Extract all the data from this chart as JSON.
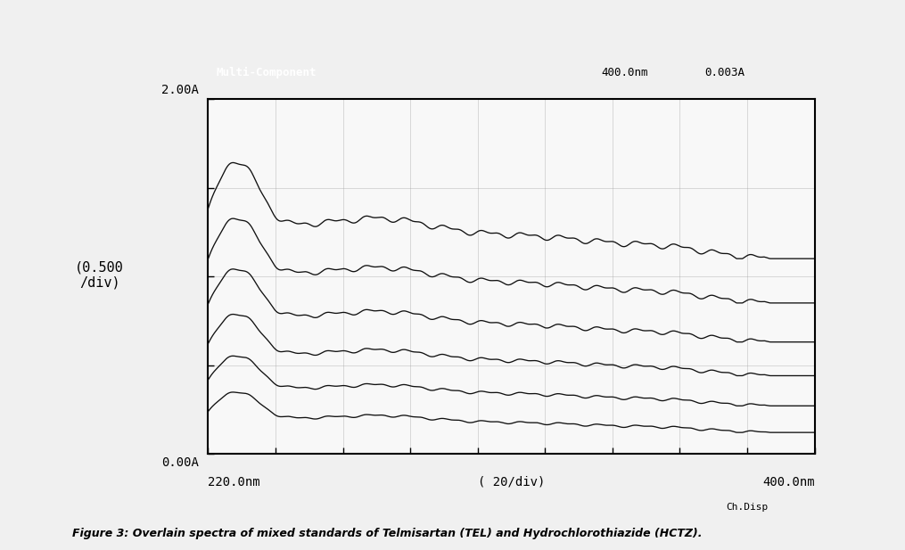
{
  "title": "Multi-Component",
  "header_right1": "400.0nm",
  "header_right2": "0.003A",
  "ylabel_text": "(0.500\n/div)",
  "xlabel_text": "( 20/div)",
  "xmin": 220.0,
  "xmax": 400.0,
  "ymin": 0.0,
  "ymax": 2.0,
  "x_label_left": "220.0nm",
  "x_label_right": "400.0nm",
  "y_label_top": "2.00A",
  "y_label_bottom": "0.00A",
  "caption": "Figure 3: Overlain spectra of mixed standards of Telmisartan (TEL) and Hydrochlorothiazide (HCTZ).",
  "background_color": "#f0f0f0",
  "plot_bg_color": "#f8f8f8",
  "curve_color": "#111111",
  "num_curves": 6,
  "curve_offsets": [
    1.1,
    0.85,
    0.63,
    0.44,
    0.27,
    0.12
  ],
  "curve_scales": [
    1.0,
    0.88,
    0.76,
    0.64,
    0.52,
    0.42
  ],
  "x_tick_positions": [
    220,
    240,
    260,
    280,
    300,
    320,
    340,
    360,
    380,
    400
  ],
  "y_tick_positions": [
    0.0,
    0.5,
    1.0,
    1.5,
    2.0
  ],
  "drop_x": 385.0,
  "footer_text": "Ch.Disp"
}
